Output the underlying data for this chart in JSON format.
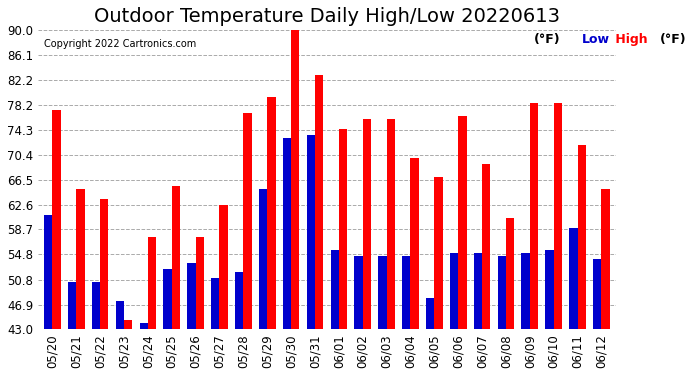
{
  "title": "Outdoor Temperature Daily High/Low 20220613",
  "copyright": "Copyright 2022 Cartronics.com",
  "legend_low": "Low",
  "legend_high": "High",
  "legend_unit": "(°F)",
  "dates": [
    "05/20",
    "05/21",
    "05/22",
    "05/23",
    "05/24",
    "05/25",
    "05/26",
    "05/27",
    "05/28",
    "05/29",
    "05/30",
    "05/31",
    "06/01",
    "06/02",
    "06/03",
    "06/04",
    "06/05",
    "06/06",
    "06/07",
    "06/08",
    "06/09",
    "06/10",
    "06/11",
    "06/12"
  ],
  "highs": [
    77.5,
    65.0,
    63.5,
    44.5,
    57.5,
    65.5,
    57.5,
    62.5,
    77.0,
    79.5,
    90.0,
    83.0,
    74.5,
    76.0,
    76.0,
    70.0,
    67.0,
    76.5,
    69.0,
    60.5,
    78.5,
    78.5,
    72.0,
    65.0
  ],
  "lows": [
    61.0,
    50.5,
    50.5,
    47.5,
    44.0,
    52.5,
    53.5,
    51.0,
    52.0,
    65.0,
    73.0,
    73.5,
    55.5,
    54.5,
    54.5,
    54.5,
    48.0,
    55.0,
    55.0,
    54.5,
    55.0,
    55.5,
    59.0,
    54.0
  ],
  "high_color": "#ff0000",
  "low_color": "#0000cc",
  "bg_color": "#ffffff",
  "yticks": [
    43.0,
    46.9,
    50.8,
    54.8,
    58.7,
    62.6,
    66.5,
    70.4,
    74.3,
    78.2,
    82.2,
    86.1,
    90.0
  ],
  "ymin": 43.0,
  "ymax": 90.0,
  "bar_width": 0.35,
  "title_fontsize": 14,
  "label_fontsize": 9,
  "tick_fontsize": 8.5
}
